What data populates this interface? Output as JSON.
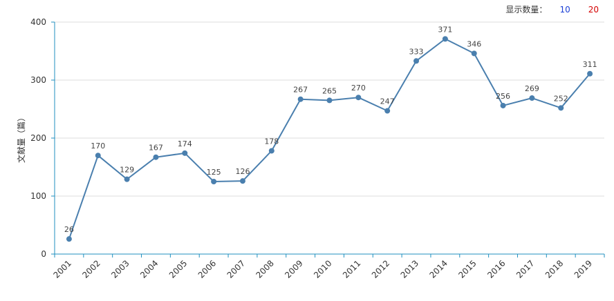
{
  "display_count": {
    "label": "显示数量：",
    "options": [
      "10",
      "20"
    ]
  },
  "colors": {
    "line": "#4a7fae",
    "axis": "#1f8fbf",
    "grid": "#dddddd"
  },
  "chart_data": {
    "type": "line",
    "xlabel": "",
    "ylabel": "文献量（篇）",
    "ylim": [
      0,
      400
    ],
    "yticks": [
      0,
      100,
      200,
      300,
      400
    ],
    "grid": "horizontal",
    "categories": [
      "2001",
      "2002",
      "2003",
      "2004",
      "2005",
      "2006",
      "2007",
      "2008",
      "2009",
      "2010",
      "2011",
      "2012",
      "2013",
      "2014",
      "2015",
      "2016",
      "2017",
      "2018",
      "2019"
    ],
    "series": [
      {
        "values": [
          26,
          170,
          129,
          167,
          174,
          125,
          126,
          178,
          267,
          265,
          270,
          247,
          333,
          371,
          346,
          256,
          269,
          252,
          311
        ]
      }
    ]
  }
}
